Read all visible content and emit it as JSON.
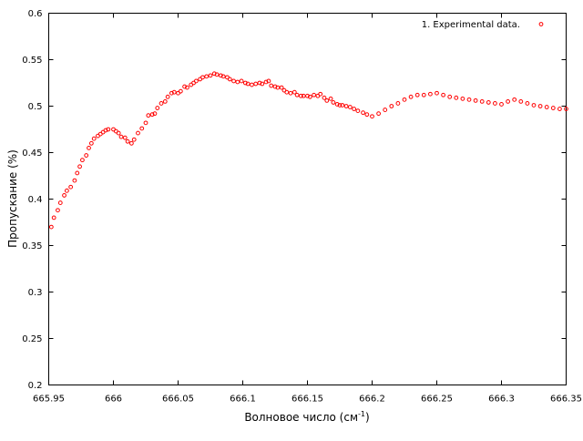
{
  "chart_data": {
    "type": "scatter",
    "xlabel": "Волновое число (см",
    "xlabel_sup": "-1",
    "xlabel_tail": ")",
    "ylabel": "Пропускание (%)",
    "xlim": [
      665.95,
      666.35
    ],
    "ylim": [
      0.2,
      0.6
    ],
    "x_tick_labels": [
      "665.95",
      "666",
      "666.05",
      "666.1",
      "666.15",
      "666.2",
      "666.25",
      "666.3",
      "666.35"
    ],
    "y_tick_labels": [
      "0.2",
      "0.25",
      "0.3",
      "0.35",
      "0.4",
      "0.45",
      "0.5",
      "0.55",
      "0.6"
    ],
    "legend_position": "top-right",
    "grid": false,
    "series": [
      {
        "name": "1. Experimental data.",
        "color": "#ff0000",
        "marker": "open-circle",
        "points": [
          [
            665.952,
            0.37
          ],
          [
            665.954,
            0.38
          ],
          [
            665.957,
            0.388
          ],
          [
            665.959,
            0.396
          ],
          [
            665.962,
            0.404
          ],
          [
            665.964,
            0.409
          ],
          [
            665.967,
            0.413
          ],
          [
            665.97,
            0.42
          ],
          [
            665.972,
            0.428
          ],
          [
            665.974,
            0.435
          ],
          [
            665.976,
            0.442
          ],
          [
            665.979,
            0.447
          ],
          [
            665.981,
            0.455
          ],
          [
            665.983,
            0.46
          ],
          [
            665.985,
            0.465
          ],
          [
            665.988,
            0.468
          ],
          [
            665.99,
            0.47
          ],
          [
            665.992,
            0.472
          ],
          [
            665.994,
            0.474
          ],
          [
            665.996,
            0.475
          ],
          [
            666.0,
            0.475
          ],
          [
            666.002,
            0.473
          ],
          [
            666.004,
            0.471
          ],
          [
            666.006,
            0.467
          ],
          [
            666.009,
            0.466
          ],
          [
            666.011,
            0.462
          ],
          [
            666.014,
            0.46
          ],
          [
            666.016,
            0.464
          ],
          [
            666.019,
            0.471
          ],
          [
            666.022,
            0.476
          ],
          [
            666.025,
            0.482
          ],
          [
            666.027,
            0.49
          ],
          [
            666.03,
            0.491
          ],
          [
            666.032,
            0.492
          ],
          [
            666.034,
            0.498
          ],
          [
            666.037,
            0.503
          ],
          [
            666.04,
            0.505
          ],
          [
            666.042,
            0.51
          ],
          [
            666.045,
            0.514
          ],
          [
            666.047,
            0.515
          ],
          [
            666.05,
            0.514
          ],
          [
            666.052,
            0.516
          ],
          [
            666.055,
            0.521
          ],
          [
            666.057,
            0.52
          ],
          [
            666.06,
            0.523
          ],
          [
            666.062,
            0.525
          ],
          [
            666.064,
            0.527
          ],
          [
            666.067,
            0.529
          ],
          [
            666.069,
            0.531
          ],
          [
            666.072,
            0.532
          ],
          [
            666.075,
            0.533
          ],
          [
            666.078,
            0.535
          ],
          [
            666.08,
            0.534
          ],
          [
            666.083,
            0.533
          ],
          [
            666.085,
            0.532
          ],
          [
            666.088,
            0.531
          ],
          [
            666.09,
            0.529
          ],
          [
            666.093,
            0.527
          ],
          [
            666.096,
            0.526
          ],
          [
            666.099,
            0.527
          ],
          [
            666.102,
            0.525
          ],
          [
            666.104,
            0.524
          ],
          [
            666.107,
            0.523
          ],
          [
            666.11,
            0.524
          ],
          [
            666.113,
            0.525
          ],
          [
            666.115,
            0.524
          ],
          [
            666.118,
            0.526
          ],
          [
            666.12,
            0.527
          ],
          [
            666.122,
            0.522
          ],
          [
            666.125,
            0.521
          ],
          [
            666.127,
            0.52
          ],
          [
            666.13,
            0.52
          ],
          [
            666.132,
            0.517
          ],
          [
            666.134,
            0.515
          ],
          [
            666.137,
            0.514
          ],
          [
            666.14,
            0.515
          ],
          [
            666.142,
            0.512
          ],
          [
            666.145,
            0.511
          ],
          [
            666.147,
            0.511
          ],
          [
            666.15,
            0.511
          ],
          [
            666.152,
            0.51
          ],
          [
            666.155,
            0.512
          ],
          [
            666.158,
            0.511
          ],
          [
            666.16,
            0.513
          ],
          [
            666.163,
            0.509
          ],
          [
            666.165,
            0.506
          ],
          [
            666.168,
            0.508
          ],
          [
            666.17,
            0.504
          ],
          [
            666.173,
            0.502
          ],
          [
            666.175,
            0.501
          ],
          [
            666.177,
            0.501
          ],
          [
            666.18,
            0.5
          ],
          [
            666.183,
            0.499
          ],
          [
            666.186,
            0.497
          ],
          [
            666.189,
            0.495
          ],
          [
            666.193,
            0.493
          ],
          [
            666.196,
            0.491
          ],
          [
            666.2,
            0.489
          ],
          [
            666.205,
            0.492
          ],
          [
            666.21,
            0.496
          ],
          [
            666.215,
            0.5
          ],
          [
            666.22,
            0.503
          ],
          [
            666.225,
            0.507
          ],
          [
            666.23,
            0.51
          ],
          [
            666.235,
            0.512
          ],
          [
            666.24,
            0.512
          ],
          [
            666.245,
            0.513
          ],
          [
            666.25,
            0.514
          ],
          [
            666.255,
            0.512
          ],
          [
            666.26,
            0.51
          ],
          [
            666.265,
            0.509
          ],
          [
            666.27,
            0.508
          ],
          [
            666.275,
            0.507
          ],
          [
            666.28,
            0.506
          ],
          [
            666.285,
            0.505
          ],
          [
            666.29,
            0.504
          ],
          [
            666.295,
            0.503
          ],
          [
            666.3,
            0.502
          ],
          [
            666.305,
            0.505
          ],
          [
            666.31,
            0.507
          ],
          [
            666.315,
            0.505
          ],
          [
            666.32,
            0.503
          ],
          [
            666.325,
            0.501
          ],
          [
            666.33,
            0.5
          ],
          [
            666.335,
            0.499
          ],
          [
            666.34,
            0.498
          ],
          [
            666.345,
            0.497
          ],
          [
            666.35,
            0.497
          ]
        ]
      }
    ]
  }
}
